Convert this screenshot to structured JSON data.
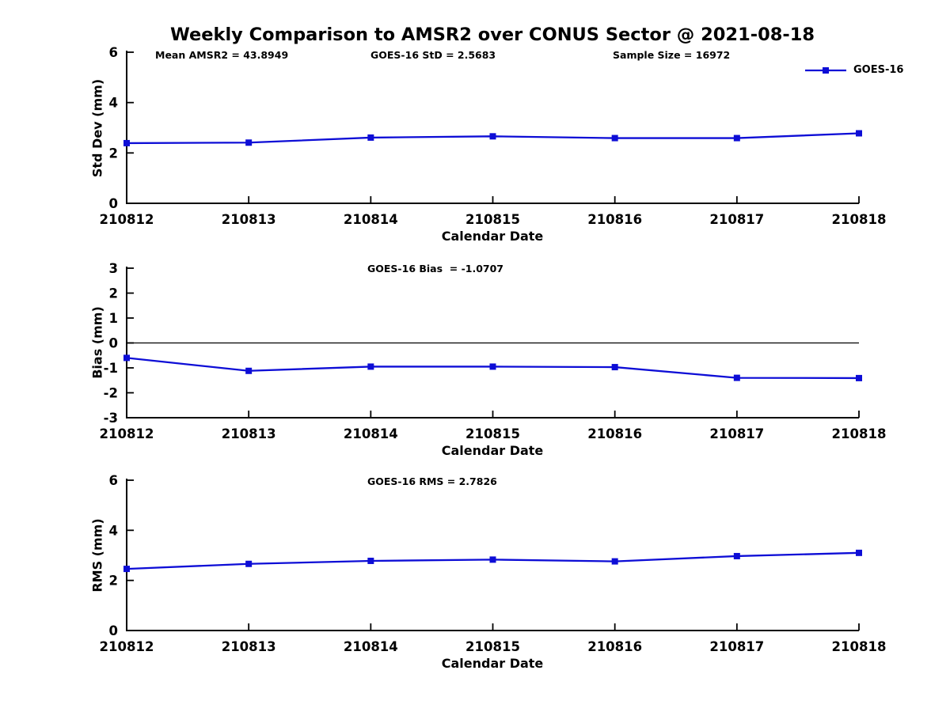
{
  "title": "Weekly Comparison to AMSR2 over CONUS Sector @ 2021-08-18",
  "colors": {
    "line": "#0d0dd6",
    "axis": "#000000",
    "text": "#000000",
    "background": "#ffffff"
  },
  "legend": {
    "label": "GOES-16",
    "position": "top-right-outside"
  },
  "chart_data": [
    {
      "type": "line",
      "categories": [
        "210812",
        "210813",
        "210814",
        "210815",
        "210816",
        "210817",
        "210818"
      ],
      "series": [
        {
          "name": "GOES-16",
          "values": [
            2.39,
            2.41,
            2.61,
            2.66,
            2.59,
            2.59,
            2.78
          ]
        }
      ],
      "annotations": [
        "Mean AMSR2 = 43.8949",
        "GOES-16 StD = 2.5683",
        "Sample Size = 16972"
      ],
      "xlabel": "Calendar Date",
      "ylabel": "Std Dev (mm)",
      "ylim": [
        0,
        6
      ],
      "yticks": [
        0,
        2,
        4,
        6
      ],
      "grid": false,
      "zero_line": false,
      "marker": "square"
    },
    {
      "type": "line",
      "categories": [
        "210812",
        "210813",
        "210814",
        "210815",
        "210816",
        "210817",
        "210818"
      ],
      "series": [
        {
          "name": "GOES-16",
          "values": [
            -0.6,
            -1.12,
            -0.95,
            -0.95,
            -0.97,
            -1.4,
            -1.41
          ]
        }
      ],
      "annotation": "GOES-16 Bias  = -1.0707",
      "xlabel": "Calendar Date",
      "ylabel": "Bias (mm)",
      "ylim": [
        -3,
        3
      ],
      "yticks": [
        -3,
        -2,
        -1,
        0,
        1,
        2,
        3
      ],
      "grid": false,
      "zero_line": true,
      "marker": "square"
    },
    {
      "type": "line",
      "categories": [
        "210812",
        "210813",
        "210814",
        "210815",
        "210816",
        "210817",
        "210818"
      ],
      "series": [
        {
          "name": "GOES-16",
          "values": [
            2.46,
            2.66,
            2.78,
            2.83,
            2.76,
            2.97,
            3.1
          ]
        }
      ],
      "annotation": "GOES-16 RMS = 2.7826",
      "xlabel": "Calendar Date",
      "ylabel": "RMS (mm)",
      "ylim": [
        0,
        6
      ],
      "yticks": [
        0,
        2,
        4,
        6
      ],
      "grid": false,
      "zero_line": false,
      "marker": "square"
    }
  ]
}
